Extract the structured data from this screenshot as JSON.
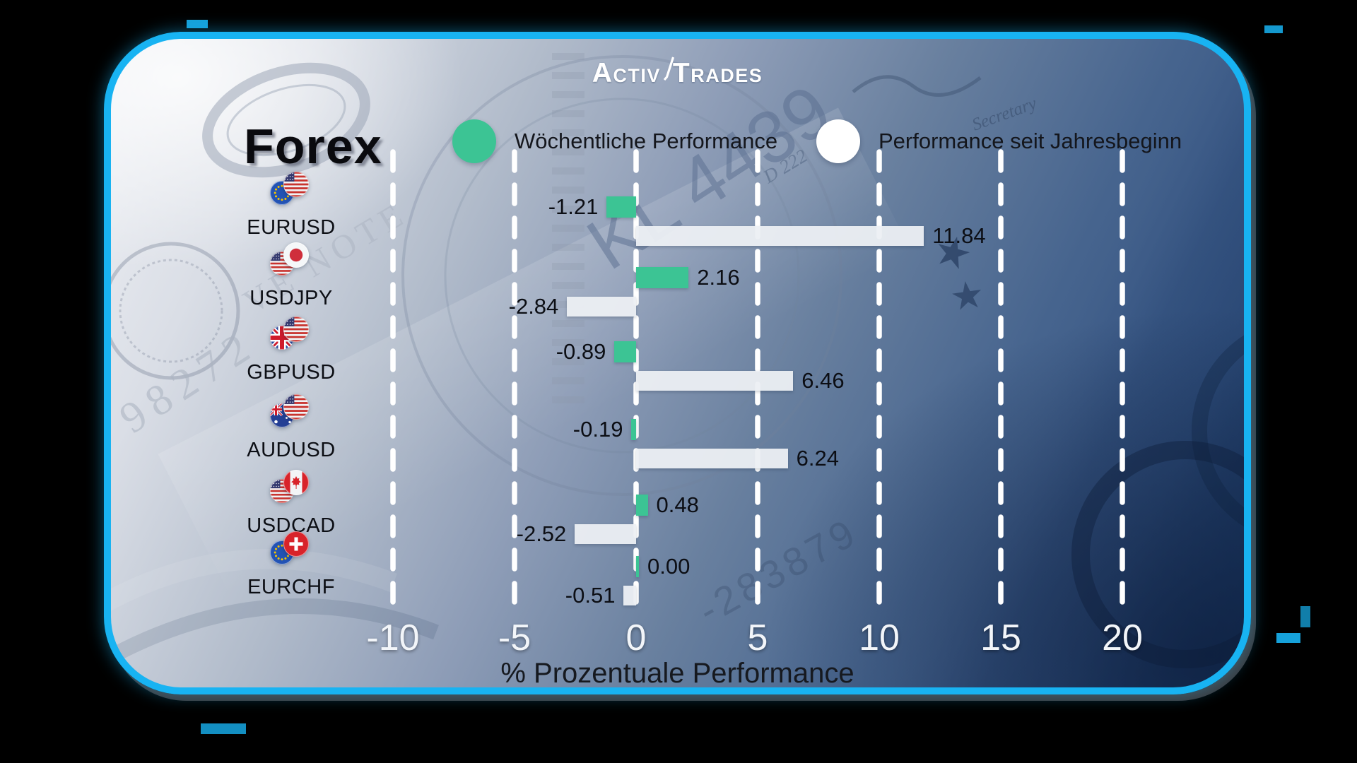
{
  "brand": {
    "logo_left": "Activ",
    "logo_right": "Trades"
  },
  "title": "Forex",
  "legend": [
    {
      "label": "Wöchentliche Performance",
      "color": "#3cc494"
    },
    {
      "label": "Performance seit Jahresbeginn",
      "color": "#ffffff"
    }
  ],
  "chart_data": {
    "type": "bar",
    "orientation": "horizontal",
    "title": "Forex",
    "categories": [
      "EURUSD",
      "USDJPY",
      "GBPUSD",
      "AUDUSD",
      "USDCAD",
      "EURCHF"
    ],
    "series": [
      {
        "name": "Wöchentliche Performance",
        "color": "#3cc494",
        "values": [
          -1.21,
          2.16,
          -0.89,
          -0.19,
          0.48,
          0.0
        ]
      },
      {
        "name": "Performance seit Jahresbeginn",
        "color": "#eceff3",
        "values": [
          11.84,
          -2.84,
          6.46,
          6.24,
          -2.52,
          -0.51
        ]
      }
    ],
    "x_ticks": [
      -10,
      -5,
      0,
      5,
      10,
      15,
      20
    ],
    "xlim": [
      -12.6,
      22.6
    ],
    "xlabel": "% Prozentuale Performance",
    "grid": "dashed-vertical-white",
    "legend_position": "top",
    "flags": [
      [
        "eu",
        "us"
      ],
      [
        "us",
        "jp"
      ],
      [
        "gb",
        "us"
      ],
      [
        "au",
        "us"
      ],
      [
        "us",
        "ca"
      ],
      [
        "eu",
        "ch"
      ]
    ]
  },
  "background_texts": {
    "serial_tl": "98272",
    "note_text": "VE NOTE",
    "plate": "KL 4439",
    "d222": "D 222",
    "secretary": "Secretary",
    "serial_br": "-283879"
  },
  "colors": {
    "border": "#18b3f2",
    "green": "#3cc494",
    "bar_white": "#eceff3",
    "grid": "#ffffff",
    "tick_label": "#f2f5f9",
    "card_light": "#edeff3",
    "card_dark": "#1b3862"
  }
}
